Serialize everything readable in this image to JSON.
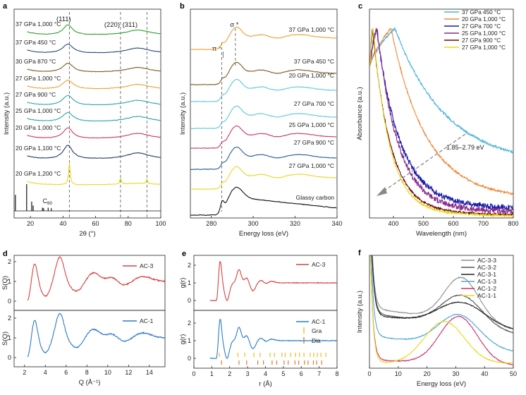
{
  "chart_data": [
    {
      "id": "a",
      "panel_label": "a",
      "type": "line",
      "xlabel": "2θ (°)",
      "ylabel": "Intensity (a.u.)",
      "xlim": [
        10,
        100
      ],
      "xticks": [
        "20",
        "40",
        "60",
        "80",
        "100"
      ],
      "peak_labels": [
        "(111)",
        "(220)",
        "(311)"
      ],
      "peak_positions": [
        43.9,
        75.3,
        91.5
      ],
      "series": [
        {
          "name": "37 GPa 1,000 °C",
          "color": "#2ca02c",
          "peaks": [
            [
              43,
              0.55,
              3.5
            ],
            [
              86,
              0.28,
              9
            ]
          ]
        },
        {
          "name": "37 GPa 450 °C",
          "color": "#2b4a7a",
          "peaks": [
            [
              43,
              0.5,
              4
            ],
            [
              86,
              0.3,
              9
            ]
          ]
        },
        {
          "name": "30 GPa 870 °C",
          "color": "#7a5a22",
          "peaks": [
            [
              43,
              0.5,
              4
            ],
            [
              86,
              0.28,
              9
            ]
          ]
        },
        {
          "name": "27 GPa 1,000 °C",
          "color": "#f0a030",
          "peaks": [
            [
              43,
              0.5,
              4
            ],
            [
              86,
              0.28,
              9
            ]
          ]
        },
        {
          "name": "27 GPa 900 °C",
          "color": "#2aa7a0",
          "peaks": [
            [
              43,
              0.55,
              4
            ],
            [
              86,
              0.3,
              9
            ]
          ]
        },
        {
          "name": "25 GPa 1,000 °C",
          "color": "#2aa7a0",
          "peaks": [
            [
              43,
              0.5,
              4
            ],
            [
              86,
              0.3,
              9
            ]
          ]
        },
        {
          "name": "20 GPa 1,000 °C",
          "color": "#d0336c",
          "peaks": [
            [
              43,
              0.6,
              3.5
            ],
            [
              86,
              0.3,
              9
            ]
          ]
        },
        {
          "name": "20 GPa 1,100 °C",
          "color": "#1f3a66",
          "peaks": [
            [
              43,
              0.75,
              3.5
            ],
            [
              86,
              0.35,
              9
            ]
          ]
        },
        {
          "name": "20 GPa 1,200 °C",
          "color": "#e8d820",
          "peaks": [
            [
              43.9,
              1.2,
              0.6
            ],
            [
              75.3,
              0.35,
              0.5
            ],
            [
              91.5,
              0.25,
              0.5
            ],
            [
              86,
              0.08,
              10
            ]
          ]
        }
      ],
      "reference": {
        "name": "C60",
        "sticks": [
          [
            10.8,
            0.6
          ],
          [
            17.7,
            1.0
          ],
          [
            20.8,
            0.35
          ],
          [
            21.7,
            0.2
          ],
          [
            27.4,
            0.12
          ],
          [
            28.1,
            0.1
          ],
          [
            30.9,
            0.12
          ],
          [
            32.8,
            0.1
          ]
        ]
      }
    },
    {
      "id": "b",
      "panel_label": "b",
      "type": "line",
      "xlabel": "Energy loss (eV)",
      "ylabel": "Intensity (a.u.)",
      "xlim": [
        270,
        340
      ],
      "xticks": [
        "280",
        "300",
        "320",
        "340"
      ],
      "annotations": [
        "σ *",
        "π *"
      ],
      "series": [
        {
          "name": "37 GPa 1,000 °C",
          "color": "#f0a030"
        },
        {
          "name": "37 GPa 450 °C",
          "color": "#7a5a22"
        },
        {
          "name": "20 GPa 1,000 °C",
          "color": "#5bc8df"
        },
        {
          "name": "27 GPa 700 °C",
          "color": "#5bc8df"
        },
        {
          "name": "25 GPa 1,000 °C",
          "color": "#d0336c"
        },
        {
          "name": "27 GPa 900 °C",
          "color": "#2b5a9a"
        },
        {
          "name": "27 GPa 1,000 °C",
          "color": "#e8d820"
        },
        {
          "name": "Glassy carbon",
          "color": "#111111"
        }
      ]
    },
    {
      "id": "c",
      "panel_label": "c",
      "type": "line",
      "xlabel": "Wavelength (nm)",
      "ylabel": "Absorbance (a.u.)",
      "xlim": [
        320,
        800
      ],
      "xticks": [
        "400",
        "500",
        "600",
        "700",
        "800"
      ],
      "annotation": "1.85–2.79 eV",
      "legend_position": "top-right",
      "series": [
        {
          "name": "37 GPa 450 °C",
          "color": "#4db3d8",
          "peak": 405,
          "decay": 165,
          "floor": 0.3
        },
        {
          "name": "20 GPa 1,000 °C",
          "color": "#ee8a3a",
          "peak": 392,
          "decay": 115,
          "floor": 0.12
        },
        {
          "name": "27 GPa 700 °C",
          "color": "#1a1aaa",
          "peak": 343,
          "decay": 78,
          "floor": 0.07
        },
        {
          "name": "25 GPa 1,000 °C",
          "color": "#8a2a8a",
          "peak": 345,
          "decay": 70,
          "floor": 0.05
        },
        {
          "name": "27 GPa 900 °C",
          "color": "#6a0a0a",
          "peak": 330,
          "decay": 60,
          "floor": 0.035
        },
        {
          "name": "27 GPa 1,000 °C",
          "color": "#e8d820",
          "peak": 332,
          "decay": 55,
          "floor": 0.03
        }
      ]
    },
    {
      "id": "d",
      "panel_label": "d",
      "type": "line",
      "xlabel": "Q (Å⁻¹)",
      "ylabel": "S(Q)",
      "xlim": [
        1,
        15.5
      ],
      "xticks": [
        "2",
        "4",
        "6",
        "8",
        "10",
        "12",
        "14"
      ],
      "yticks": [
        "0",
        "1",
        "2"
      ],
      "series": [
        {
          "name": "AC-3",
          "color": "#d94040"
        },
        {
          "name": "AC-1",
          "color": "#2a7acc"
        }
      ]
    },
    {
      "id": "e",
      "panel_label": "e",
      "type": "line",
      "xlabel": "r (Å)",
      "ylabel": "g(r)",
      "xlim": [
        0,
        8
      ],
      "xticks": [
        "0",
        "1",
        "2",
        "3",
        "4",
        "5",
        "6",
        "7",
        "8"
      ],
      "yticks": [
        "0",
        "1",
        "2"
      ],
      "series": [
        {
          "name": "AC-3",
          "color": "#d94040"
        },
        {
          "name": "AC-1",
          "color": "#2a7acc"
        }
      ],
      "references": [
        {
          "name": "Gra",
          "color": "#e8c020"
        },
        {
          "name": "Dia",
          "color": "#e07830"
        }
      ]
    },
    {
      "id": "f",
      "panel_label": "f",
      "type": "line",
      "xlabel": "Energy loss (eV)",
      "ylabel": "Intensity (a.u.)",
      "xlim": [
        0,
        50
      ],
      "xticks": [
        "0",
        "10",
        "20",
        "30",
        "40",
        "50"
      ],
      "legend_position": "top-right",
      "series": [
        {
          "name": "AC-3-3",
          "color": "#909090",
          "base": 0.55,
          "amp": 0.42,
          "center": 32,
          "width": 6,
          "slope": 0.004
        },
        {
          "name": "AC-3-2",
          "color": "#555555",
          "base": 0.5,
          "amp": 0.3,
          "center": 32,
          "width": 7,
          "slope": 0.004
        },
        {
          "name": "AC-3-1",
          "color": "#222222",
          "base": 0.48,
          "amp": 0.22,
          "center": 32,
          "width": 8,
          "slope": 0.003
        },
        {
          "name": "AC-1-3",
          "color": "#4aa8dd",
          "base": 0.28,
          "amp": 0.3,
          "center": 31,
          "width": 7,
          "slope": 0.003
        },
        {
          "name": "AC-1-2",
          "color": "#cc3070",
          "base": 0.05,
          "amp": 0.45,
          "center": 31,
          "width": 6.5,
          "slope": 0.001
        },
        {
          "name": "AC-1-1",
          "color": "#e8d820",
          "base": 0.02,
          "amp": 0.4,
          "center": 26,
          "width": 7,
          "slope": 0.0
        }
      ]
    }
  ]
}
